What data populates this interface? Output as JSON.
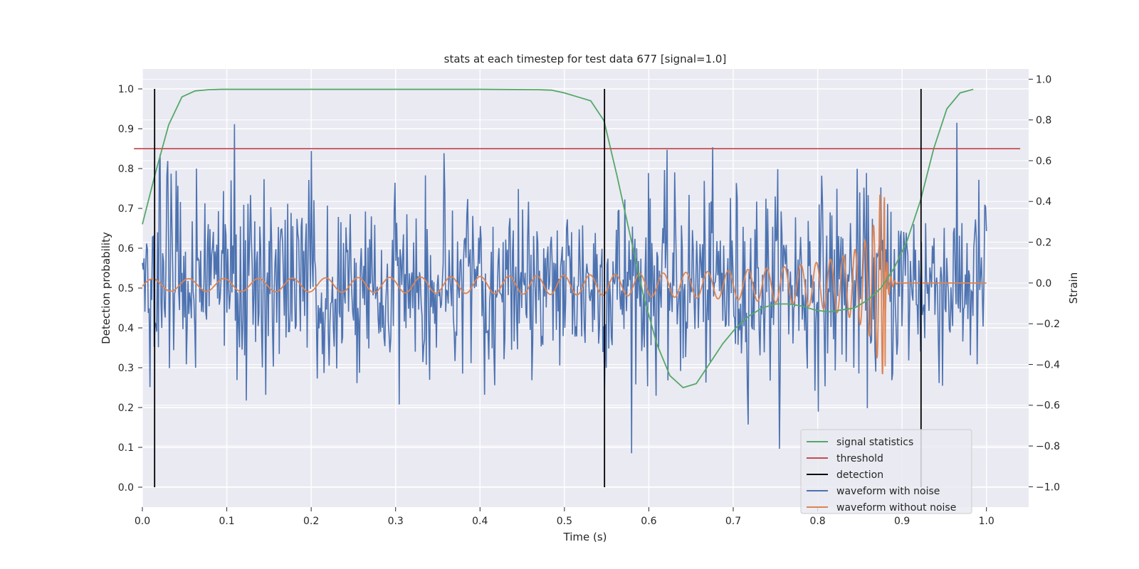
{
  "chart_data": {
    "type": "line",
    "title": "stats at each timestep for test data 677 [signal=1.0]",
    "xlabel": "Time (s)",
    "ylabel": "Detection probability",
    "ylabel_right": "Strain",
    "xlim": [
      0.0,
      1.05
    ],
    "ylim": [
      -0.05,
      1.05
    ],
    "ylim_right": [
      -1.1,
      1.05
    ],
    "xticks": [
      0.0,
      0.1,
      0.2,
      0.3,
      0.4,
      0.5,
      0.6,
      0.7,
      0.8,
      0.9,
      1.0
    ],
    "xtick_labels": [
      "0.0",
      "0.1",
      "0.2",
      "0.3",
      "0.4",
      "0.5",
      "0.6",
      "0.7",
      "0.8",
      "0.9",
      "1.0"
    ],
    "yticks": [
      0.0,
      0.1,
      0.2,
      0.3,
      0.4,
      0.5,
      0.6,
      0.7,
      0.8,
      0.9,
      1.0
    ],
    "ytick_labels": [
      "0.0",
      "0.1",
      "0.2",
      "0.3",
      "0.4",
      "0.5",
      "0.6",
      "0.7",
      "0.8",
      "0.9",
      "1.0"
    ],
    "yticks_right": [
      -1.0,
      -0.8,
      -0.6,
      -0.4,
      -0.2,
      0.0,
      0.2,
      0.4,
      0.6,
      0.8,
      1.0
    ],
    "ytick_labels_right": [
      "−1.0",
      "−0.8",
      "−0.6",
      "−0.4",
      "−0.2",
      "0.0",
      "0.2",
      "0.4",
      "0.6",
      "0.8",
      "1.0"
    ],
    "grid": true,
    "legend_position": "bottom-right",
    "series": [
      {
        "name": "signal statistics",
        "color": "#55a868",
        "axis": "left",
        "x": [
          0.0,
          0.0156,
          0.0312,
          0.0469,
          0.0625,
          0.0781,
          0.0938,
          0.1094,
          0.2,
          0.3,
          0.4,
          0.4688,
          0.4844,
          0.5,
          0.5156,
          0.5312,
          0.5469,
          0.5625,
          0.5781,
          0.5938,
          0.6094,
          0.625,
          0.6406,
          0.6562,
          0.6719,
          0.6875,
          0.7031,
          0.7188,
          0.7344,
          0.75,
          0.7656,
          0.7812,
          0.7969,
          0.8125,
          0.8281,
          0.8438,
          0.8594,
          0.875,
          0.8906,
          0.9062,
          0.9219,
          0.9375,
          0.9531,
          0.9688,
          0.9844
        ],
        "y": [
          0.66,
          0.79,
          0.91,
          0.98,
          0.995,
          0.998,
          0.999,
          0.999,
          0.999,
          0.999,
          0.999,
          0.998,
          0.997,
          0.99,
          0.98,
          0.97,
          0.92,
          0.78,
          0.63,
          0.48,
          0.36,
          0.28,
          0.25,
          0.26,
          0.31,
          0.36,
          0.4,
          0.43,
          0.45,
          0.46,
          0.46,
          0.455,
          0.445,
          0.44,
          0.445,
          0.45,
          0.47,
          0.5,
          0.55,
          0.62,
          0.72,
          0.85,
          0.95,
          0.99,
          0.999
        ]
      },
      {
        "name": "threshold",
        "color": "#c44e52",
        "axis": "left",
        "x": [
          -0.01,
          1.04
        ],
        "y": [
          0.85,
          0.85
        ]
      },
      {
        "name": "detection",
        "color": "#000000",
        "axis": "left",
        "x": [
          0.0145,
          0.5475,
          0.9225
        ],
        "y_range": [
          0.0,
          1.0
        ]
      },
      {
        "name": "waveform with noise",
        "color": "#4c72b0",
        "axis": "right",
        "x_range": [
          0.0,
          1.0
        ],
        "num_points": 1000,
        "std": 0.24
      },
      {
        "name": "waveform without noise",
        "color": "#dd8452",
        "axis": "right",
        "x_range": [
          0.0,
          1.0
        ],
        "chirp_merger_time": 0.88,
        "amplitude_start": 0.03,
        "amplitude_peak": 0.45
      }
    ]
  }
}
